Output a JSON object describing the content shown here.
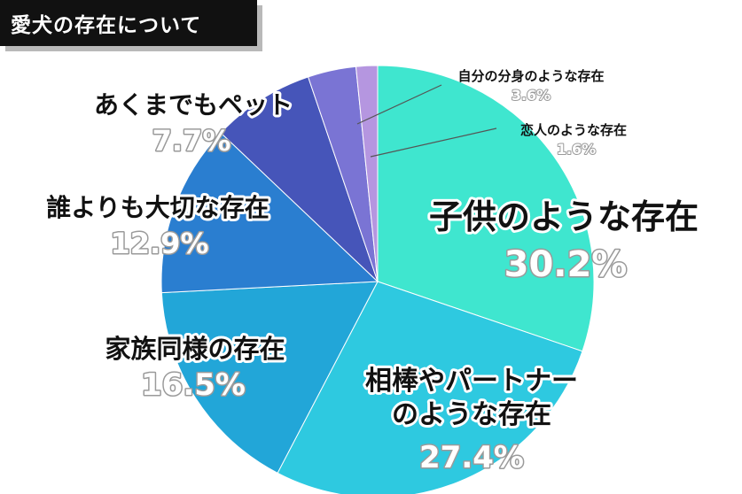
{
  "chart_data": {
    "type": "pie",
    "title": "愛犬の存在について",
    "slices": [
      {
        "label": "子供のような存在",
        "value": 30.2,
        "display": "30.2%",
        "color": "#3fe6cf"
      },
      {
        "label": "相棒やパートナーのような存在",
        "label_lines": [
          "相棒やパートナー",
          "のような存在"
        ],
        "value": 27.4,
        "display": "27.4%",
        "color": "#2ec9e0"
      },
      {
        "label": "家族同様の存在",
        "value": 16.5,
        "display": "16.5%",
        "color": "#22a6d8"
      },
      {
        "label": "誰よりも大切な存在",
        "value": 12.9,
        "display": "12.9%",
        "color": "#2a7ed0"
      },
      {
        "label": "あくまでもペット",
        "value": 7.7,
        "display": "7.7%",
        "color": "#4655b9"
      },
      {
        "label": "自分の分身のような存在",
        "value": 3.6,
        "display": "3.6%",
        "color": "#7a74d4"
      },
      {
        "label": "恋人のような存在",
        "value": 1.6,
        "display": "1.6%",
        "color": "#b596e0"
      }
    ],
    "start_angle_deg": 0,
    "direction": "clockwise"
  }
}
